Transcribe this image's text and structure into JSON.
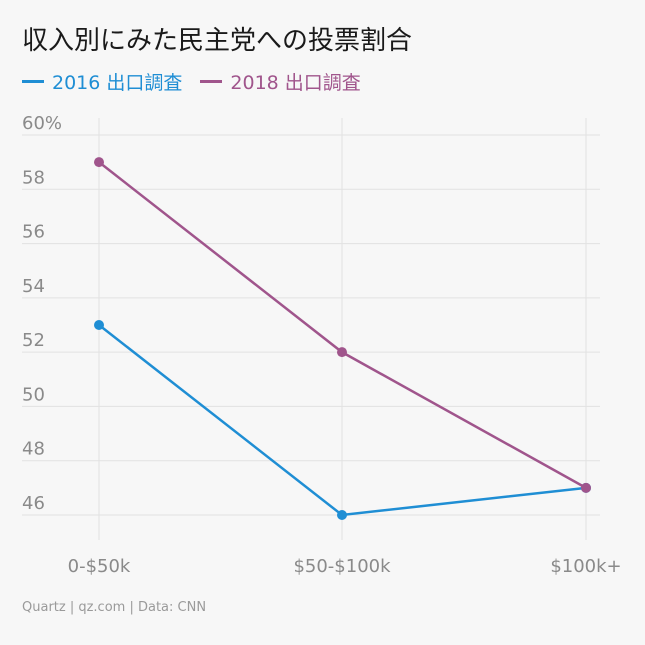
{
  "title": "収入別にみた民主党への投票割合",
  "source": "Quartz | qz.com | Data: CNN",
  "chart_data": {
    "type": "line",
    "categories": [
      "0-$50k",
      "$50-$100k",
      "$100k+"
    ],
    "series": [
      {
        "name": "2016 出口調査",
        "color": "#1f8ed4",
        "values": [
          53,
          46,
          47
        ]
      },
      {
        "name": "2018 出口調査",
        "color": "#a0558c",
        "values": [
          59,
          52,
          47
        ]
      }
    ],
    "ylim": [
      45,
      60
    ],
    "yticks": [
      46,
      48,
      50,
      52,
      54,
      56,
      58,
      60
    ],
    "ytick_labels": [
      "46",
      "48",
      "50",
      "52",
      "54",
      "56",
      "58",
      "60%"
    ],
    "grid": true,
    "legend": "top-left"
  }
}
